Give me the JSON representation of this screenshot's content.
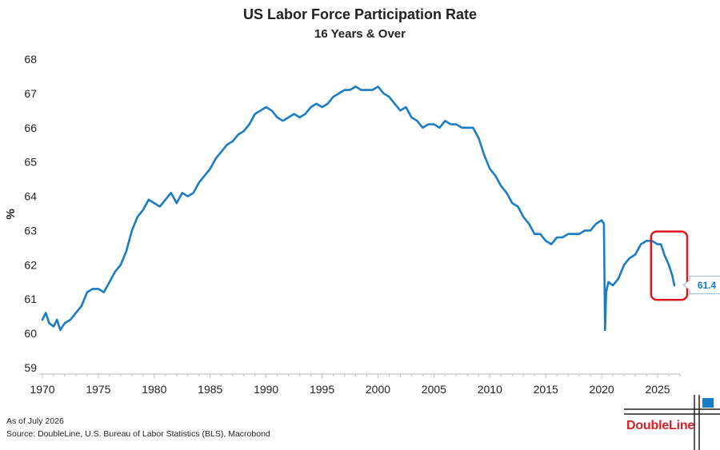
{
  "chart_data": {
    "type": "line",
    "title": "US Labor Force Participation Rate",
    "subtitle": "16 Years & Over",
    "ylabel": "%",
    "xlabel": "",
    "xlim": [
      1970,
      2027
    ],
    "ylim": [
      59,
      68
    ],
    "x_ticks": [
      1970,
      1975,
      1980,
      1985,
      1990,
      1995,
      2000,
      2005,
      2010,
      2015,
      2020,
      2025
    ],
    "y_ticks": [
      59,
      60,
      61,
      62,
      63,
      64,
      65,
      66,
      67,
      68
    ],
    "grid": false,
    "line_color": "#1a7cc4",
    "highlight_color": "#e0161e",
    "series": [
      {
        "x": [
          1970.0,
          1970.3,
          1970.6,
          1971.0,
          1971.3,
          1971.6,
          1972.0,
          1972.5,
          1973.0,
          1973.5,
          1974.0,
          1974.5,
          1975.0,
          1975.5,
          1976.0,
          1976.5,
          1977.0,
          1977.5,
          1978.0,
          1978.5,
          1979.0,
          1979.5,
          1980.0,
          1980.5,
          1981.0,
          1981.5,
          1982.0,
          1982.5,
          1983.0,
          1983.5,
          1984.0,
          1984.5,
          1985.0,
          1985.5,
          1986.0,
          1986.5,
          1987.0,
          1987.5,
          1988.0,
          1988.5,
          1989.0,
          1989.5,
          1990.0,
          1990.5,
          1991.0,
          1991.5,
          1992.0,
          1992.5,
          1993.0,
          1993.5,
          1994.0,
          1994.5,
          1995.0,
          1995.5,
          1996.0,
          1996.5,
          1997.0,
          1997.5,
          1998.0,
          1998.5,
          1999.0,
          1999.5,
          2000.0,
          2000.5,
          2001.0,
          2001.5,
          2002.0,
          2002.5,
          2003.0,
          2003.5,
          2004.0,
          2004.5,
          2005.0,
          2005.5,
          2006.0,
          2006.5,
          2007.0,
          2007.5,
          2008.0,
          2008.5,
          2009.0,
          2009.5,
          2010.0,
          2010.5,
          2011.0,
          2011.5,
          2012.0,
          2012.5,
          2013.0,
          2013.5,
          2014.0,
          2014.5,
          2015.0,
          2015.5,
          2016.0,
          2016.5,
          2017.0,
          2017.5,
          2018.0,
          2018.5,
          2019.0,
          2019.5,
          2020.0,
          2020.2,
          2020.3,
          2020.4,
          2020.6,
          2021.0,
          2021.5,
          2022.0,
          2022.5,
          2023.0,
          2023.5,
          2024.0,
          2024.5,
          2025.0,
          2025.3,
          2025.6,
          2026.0,
          2026.3,
          2026.5
        ],
        "values": [
          60.4,
          60.6,
          60.3,
          60.2,
          60.4,
          60.1,
          60.3,
          60.4,
          60.6,
          60.8,
          61.2,
          61.3,
          61.3,
          61.2,
          61.5,
          61.8,
          62.0,
          62.4,
          63.0,
          63.4,
          63.6,
          63.9,
          63.8,
          63.7,
          63.9,
          64.1,
          63.8,
          64.1,
          64.0,
          64.1,
          64.4,
          64.6,
          64.8,
          65.1,
          65.3,
          65.5,
          65.6,
          65.8,
          65.9,
          66.1,
          66.4,
          66.5,
          66.6,
          66.5,
          66.3,
          66.2,
          66.3,
          66.4,
          66.3,
          66.4,
          66.6,
          66.7,
          66.6,
          66.7,
          66.9,
          67.0,
          67.1,
          67.1,
          67.2,
          67.1,
          67.1,
          67.1,
          67.2,
          67.0,
          66.9,
          66.7,
          66.5,
          66.6,
          66.3,
          66.2,
          66.0,
          66.1,
          66.1,
          66.0,
          66.2,
          66.1,
          66.1,
          66.0,
          66.0,
          66.0,
          65.7,
          65.2,
          64.8,
          64.6,
          64.3,
          64.1,
          63.8,
          63.7,
          63.4,
          63.2,
          62.9,
          62.9,
          62.7,
          62.6,
          62.8,
          62.8,
          62.9,
          62.9,
          62.9,
          63.0,
          63.0,
          63.2,
          63.3,
          63.2,
          60.1,
          61.2,
          61.5,
          61.4,
          61.6,
          62.0,
          62.2,
          62.3,
          62.6,
          62.7,
          62.7,
          62.6,
          62.6,
          62.3,
          62.0,
          61.7,
          61.4
        ]
      }
    ],
    "callout": {
      "value": "61.4"
    }
  },
  "footnote": {
    "as_of": "As of July 2026",
    "source": "Source: DoubleLine, U.S. Bureau of Labor Statistics (BLS), Macrobond"
  },
  "logo": {
    "text": "DoubleLine",
    "icon": "doubleline-logo-icon"
  }
}
